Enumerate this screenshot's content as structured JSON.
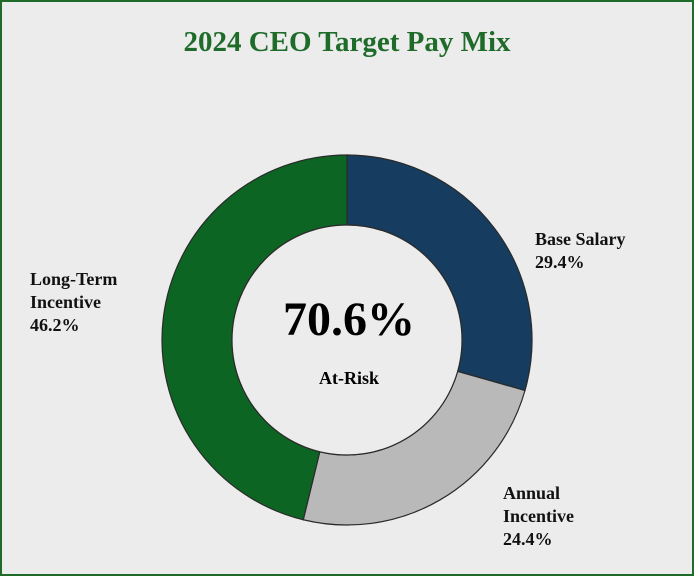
{
  "chart_data": {
    "type": "donut",
    "title": "2024 CEO Target Pay Mix",
    "categories": [
      "Base Salary",
      "Annual Incentive",
      "Long-Term Incentive"
    ],
    "values": [
      29.4,
      24.4,
      46.2
    ],
    "value_labels": [
      "29.4%",
      "24.4%",
      "46.2%"
    ],
    "colors": [
      "#163c5f",
      "#b9b9b9",
      "#0d6524"
    ],
    "center_label": "70.6%",
    "center_sublabel": "At-Risk"
  }
}
